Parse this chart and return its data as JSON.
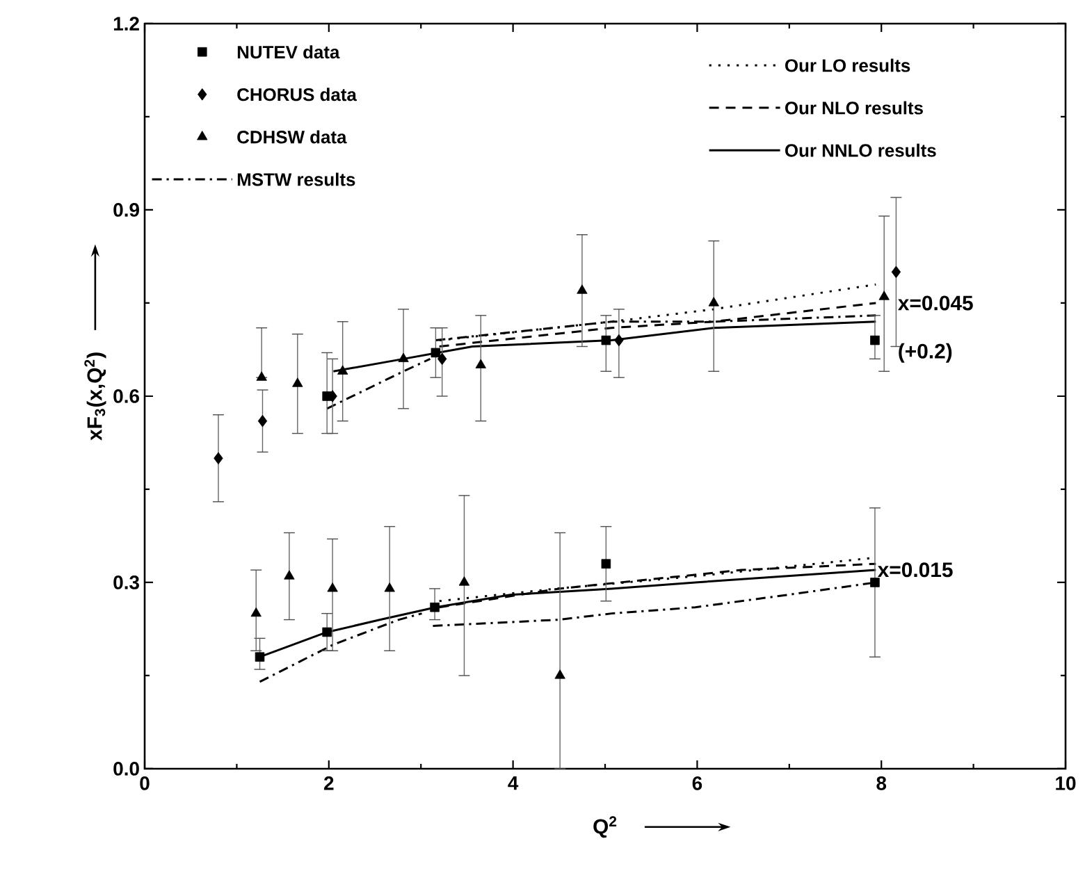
{
  "chart_data": {
    "type": "scatter",
    "xlabel": "Q$^{2}$",
    "ylabel": "xF$_{3}$(x,Q$^{2}$)",
    "xlim": [
      0,
      10
    ],
    "ylim": [
      0,
      1.2
    ],
    "xticks": [
      0,
      2,
      4,
      6,
      8,
      10
    ],
    "yticks": [
      {
        "value": 0,
        "label": "0.0"
      },
      {
        "value": 0.3,
        "label": "0.3"
      },
      {
        "value": 0.6,
        "label": "0.6"
      },
      {
        "value": 0.9,
        "label": "0.9"
      },
      {
        "value": 1.2,
        "label": "1.2"
      }
    ],
    "legend": "top",
    "grid": false,
    "annotations": [
      "x=0.015",
      "x=0.045",
      "(+0.2)"
    ],
    "series": [
      {
        "name": "NUTEV data",
        "marker": "square",
        "color": "#000000",
        "x": [
          1.25,
          1.98,
          3.15,
          5.01,
          7.93
        ],
        "values": [
          0.18,
          0.22,
          0.26,
          0.33,
          0.3
        ],
        "errors": [
          [
            0.16,
            0.21
          ],
          [
            0.19,
            0.25
          ],
          [
            0.24,
            0.29
          ],
          [
            0.27,
            0.39
          ],
          [
            0.18,
            0.42
          ]
        ]
      },
      {
        "name": "CHORUS data",
        "marker": "diamond",
        "color": "#000000",
        "x": [
          0.8,
          1.28,
          2.04,
          3.23,
          5.15,
          8.16
        ],
        "values": [
          0.5,
          0.56,
          0.6,
          0.66,
          0.69,
          0.8
        ],
        "errors": [
          [
            0.43,
            0.57
          ],
          [
            0.51,
            0.61
          ],
          [
            0.54,
            0.66
          ],
          [
            0.6,
            0.71
          ],
          [
            0.63,
            0.74
          ],
          [
            0.68,
            0.92
          ]
        ]
      },
      {
        "name": "CDHSW data",
        "marker": "triangle",
        "color": "#000000",
        "x": [
          1.21,
          1.57,
          2.04,
          2.66,
          3.47,
          4.51
        ],
        "values": [
          0.25,
          0.31,
          0.29,
          0.29,
          0.3,
          0.15
        ],
        "errors": [
          [
            0.19,
            0.32
          ],
          [
            0.24,
            0.38
          ],
          [
            0.19,
            0.37
          ],
          [
            0.19,
            0.39
          ],
          [
            0.15,
            0.44
          ],
          [
            0,
            0.38
          ]
        ]
      },
      {
        "name": "MSTW results",
        "type": "line",
        "line_style": "dashdot",
        "color": "#000000",
        "x": [
          1.25,
          2.05,
          2.76,
          3.01,
          3.07,
          3.13,
          4.5,
          5.07,
          5.98,
          6.98,
          7.94
        ],
        "values": [
          0.14,
          0.2,
          0.24,
          0.25,
          null,
          0.23,
          0.24,
          0.25,
          0.26,
          0.28,
          0.3
        ]
      },
      {
        "name": "Our LO results",
        "type": "line",
        "line_style": "dotted",
        "color": "#000000",
        "x": [
          3.2,
          4.47,
          5.98,
          7.94
        ],
        "values": [
          0.27,
          0.29,
          0.31,
          0.34
        ]
      },
      {
        "name": "Our NLO results",
        "type": "line",
        "line_style": "dashed",
        "color": "#000000",
        "x": [
          3.2,
          4.5,
          6.48,
          7.94
        ],
        "values": [
          0.26,
          0.29,
          0.32,
          0.33
        ]
      },
      {
        "name": "Our NNLO results",
        "type": "line",
        "line_style": "solid",
        "color": "#000000",
        "x": [
          1.25,
          1.98,
          2.56,
          3.16,
          3.97,
          5.07,
          5.98,
          7.94
        ],
        "values": [
          0.18,
          0.22,
          0.24,
          0.26,
          0.28,
          0.29,
          0.3,
          0.32
        ]
      },
      {
        "marker": "square",
        "color": "#000000",
        "x": [
          1.98,
          3.16,
          5.01,
          7.93
        ],
        "values": [
          0.6,
          0.67,
          0.69,
          0.69
        ],
        "errors": [
          [
            0.54,
            0.67
          ],
          [
            0.63,
            0.71
          ],
          [
            0.64,
            0.73
          ],
          [
            0.66,
            0.73
          ]
        ]
      },
      {
        "marker": "triangle",
        "color": "#000000",
        "x": [
          1.27,
          1.66,
          2.15,
          2.81,
          3.65,
          4.75,
          6.18,
          8.03
        ],
        "values": [
          0.63,
          0.62,
          0.64,
          0.66,
          0.65,
          0.77,
          0.75,
          0.76
        ],
        "errors": [
          [
            0.63,
            0.71
          ],
          [
            0.54,
            0.7
          ],
          [
            0.56,
            0.72
          ],
          [
            0.58,
            0.74
          ],
          [
            0.56,
            0.73
          ],
          [
            0.68,
            0.86
          ],
          [
            0.64,
            0.85
          ],
          [
            0.64,
            0.89
          ]
        ]
      },
      {
        "type": "line",
        "line_style": "dashdot",
        "color": "#000000",
        "x": [
          1.98,
          2.81,
          3.1,
          3.13,
          3.16,
          5.07,
          6.18,
          7.94
        ],
        "values": [
          0.58,
          0.64,
          0.66,
          null,
          0.69,
          0.72,
          0.72,
          0.73
        ]
      },
      {
        "type": "line",
        "line_style": "dotted",
        "color": "#000000",
        "x": [
          3.2,
          5.07,
          6.18,
          7.94
        ],
        "values": [
          0.69,
          0.72,
          0.74,
          0.78
        ]
      },
      {
        "type": "line",
        "line_style": "dashed",
        "color": "#000000",
        "x": [
          3.2,
          5.07,
          6.18,
          7.94
        ],
        "values": [
          0.68,
          0.71,
          0.72,
          0.75
        ]
      },
      {
        "type": "line",
        "line_style": "solid",
        "color": "#000000",
        "x": [
          2.05,
          2.81,
          3.56,
          5.07,
          6.18,
          7.94
        ],
        "values": [
          0.64,
          0.66,
          0.68,
          0.69,
          0.71,
          0.72
        ]
      }
    ]
  }
}
